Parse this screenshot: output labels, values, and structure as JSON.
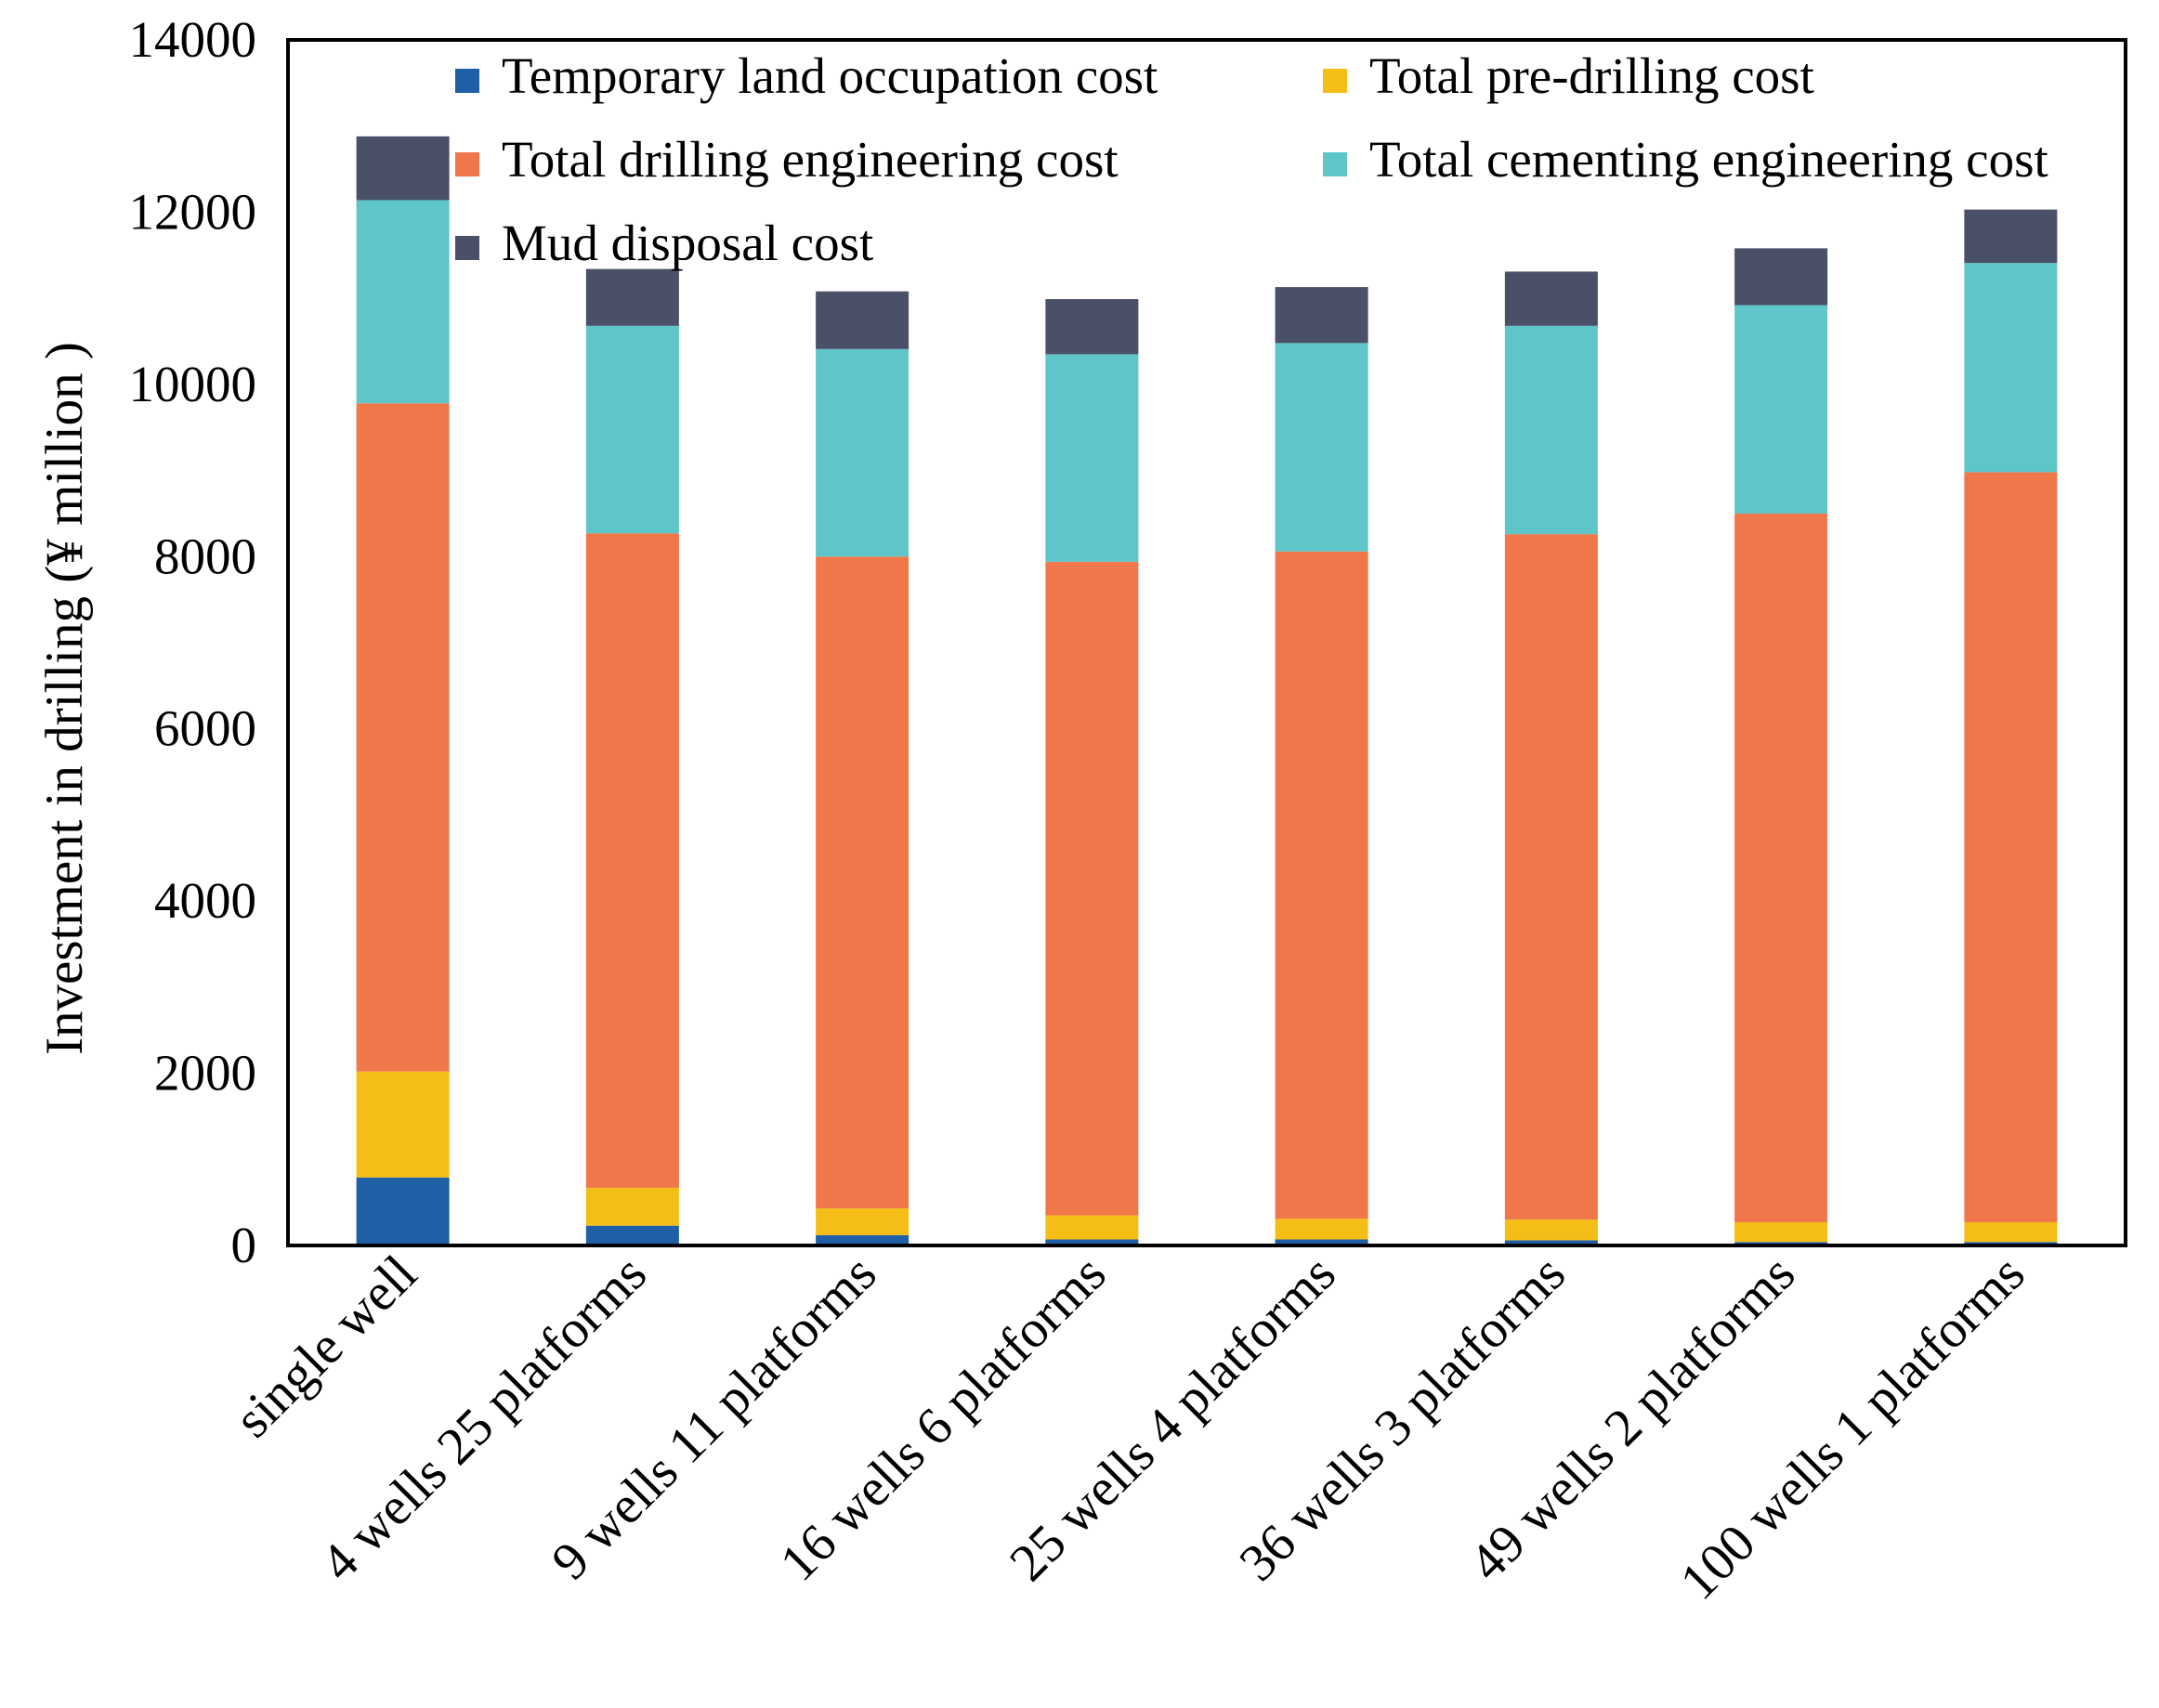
{
  "chart_data": {
    "type": "bar",
    "stacked": true,
    "title": "",
    "xlabel": "",
    "ylabel": "Investment  in drilling (¥ million )",
    "ylim": [
      0,
      14000
    ],
    "yticks": [
      0,
      2000,
      4000,
      6000,
      8000,
      10000,
      12000,
      14000
    ],
    "grid": false,
    "legend_position": "top",
    "categories": [
      "single well",
      "4 wells 25 platforms",
      "9 wells 11 platforms",
      "16 wells 6 platforms",
      "25 wells 4 platforms",
      "36 wells 3 platforms",
      "49 wells 2 platforms",
      "100 wells 1 platforms"
    ],
    "series": [
      {
        "name": "Temporary land occupation cost",
        "color": "#1f5fa6",
        "values": [
          790,
          230,
          120,
          70,
          70,
          60,
          40,
          40
        ]
      },
      {
        "name": "Total pre-drilling cost",
        "color": "#f5be16",
        "values": [
          1230,
          440,
          310,
          280,
          240,
          240,
          230,
          230
        ]
      },
      {
        "name": "Total drilling engineering cost",
        "color": "#f0774a",
        "values": [
          7760,
          7600,
          7570,
          7590,
          7750,
          7960,
          8230,
          8710
        ]
      },
      {
        "name": "Total cementing engineering cost",
        "color": "#5ec5c8",
        "values": [
          2360,
          2410,
          2410,
          2410,
          2420,
          2420,
          2420,
          2430
        ]
      },
      {
        "name": "Mud disposal cost",
        "color": "#4a5068",
        "values": [
          740,
          660,
          670,
          640,
          650,
          630,
          660,
          620
        ]
      }
    ]
  }
}
